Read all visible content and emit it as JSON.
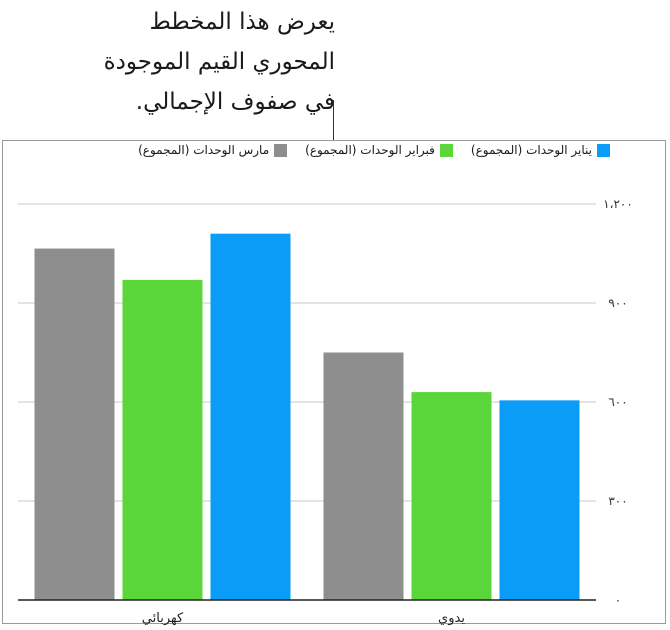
{
  "caption": "يعرض هذا المخطط\nالمحوري القيم الموجودة\nفي صفوف الإجمالي.",
  "chart_data": {
    "type": "bar",
    "categories": [
      "يدوي",
      "كهربائي"
    ],
    "series": [
      {
        "name": "يناير الوحدات (المجموع)",
        "color": "#0a9cf6",
        "values": [
          605,
          1110
        ]
      },
      {
        "name": "فبراير الوحدات (المجموع)",
        "color": "#5ad63a",
        "values": [
          630,
          970
        ]
      },
      {
        "name": "مارس الوحدات (المجموع)",
        "color": "#8e8e8e",
        "values": [
          750,
          1065
        ]
      }
    ],
    "y_ticks": [
      {
        "value": 0,
        "label": "٠"
      },
      {
        "value": 300,
        "label": "٣٠٠"
      },
      {
        "value": 600,
        "label": "٦٠٠"
      },
      {
        "value": 900,
        "label": "٩٠٠"
      },
      {
        "value": 1200,
        "label": "١،٢٠٠"
      }
    ],
    "ylim": [
      0,
      1200
    ],
    "grid": true,
    "legend_position": "top"
  }
}
